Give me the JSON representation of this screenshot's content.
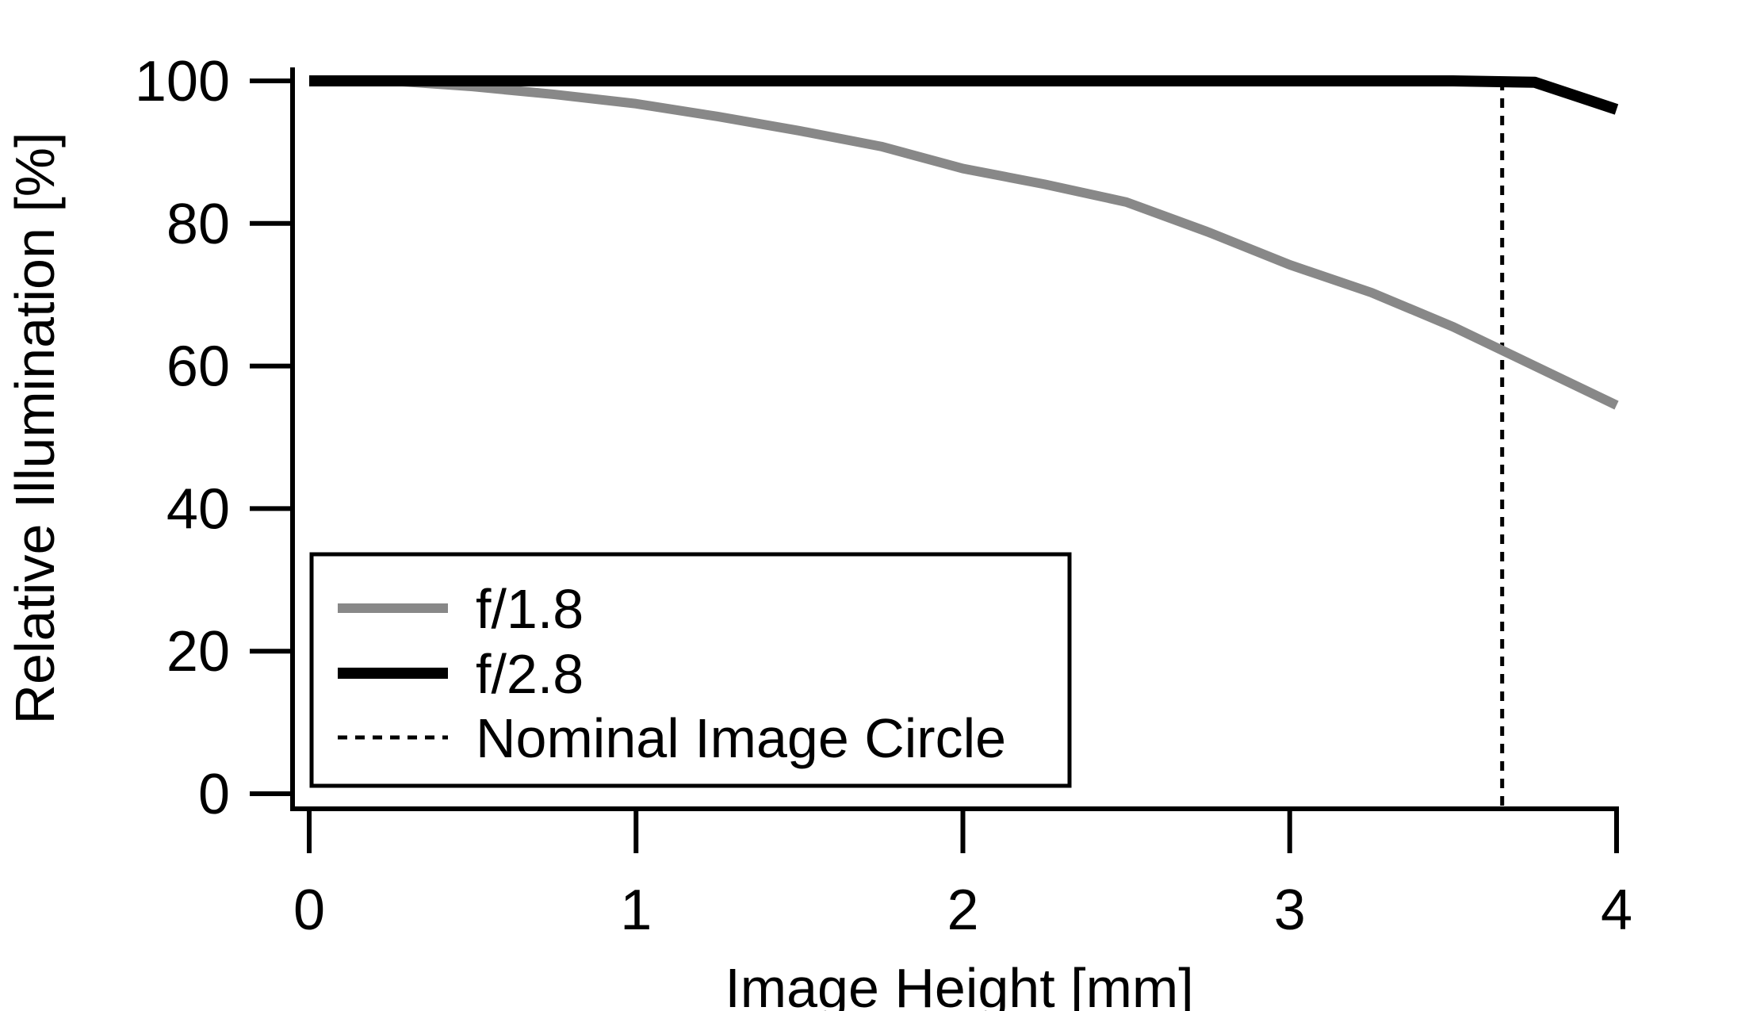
{
  "chart_data": {
    "type": "line",
    "xlabel": "Image Height [mm]",
    "ylabel": "Relative Illumination [%]",
    "x": [
      0,
      0.25,
      0.5,
      0.75,
      1,
      1.25,
      1.5,
      1.75,
      2,
      2.25,
      2.5,
      2.75,
      3,
      3.25,
      3.5,
      3.75,
      4
    ],
    "series": [
      {
        "name": "f/1.8",
        "color": "#888888",
        "values": [
          100,
          100,
          99.2,
          98.1,
          96.8,
          95.0,
          93.0,
          90.8,
          87.7,
          85.5,
          83.0,
          78.8,
          74.2,
          70.3,
          65.5,
          60.0,
          54.5
        ]
      },
      {
        "name": "f/2.8",
        "color": "#000000",
        "values": [
          100,
          100,
          100,
          100,
          100,
          100,
          100,
          100,
          100,
          100,
          100,
          100,
          100,
          100,
          100,
          99.8,
          96.0
        ]
      }
    ],
    "reference_line": {
      "name": "Nominal Image Circle",
      "x": 3.65,
      "color": "#000000"
    },
    "xlim": [
      0,
      4
    ],
    "xticks": [
      0,
      1,
      2,
      3,
      4
    ],
    "ylim": [
      0,
      100
    ],
    "yticks": [
      0,
      20,
      40,
      60,
      80,
      100
    ],
    "grid": false,
    "legend": "lower left"
  }
}
